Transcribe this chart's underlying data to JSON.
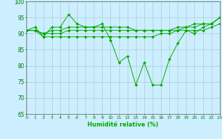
{
  "title": "",
  "xlabel": "Humidité relative (%)",
  "ylabel": "",
  "background_color": "#cceeff",
  "grid_color": "#aacccc",
  "line_color": "#00aa00",
  "ylim": [
    65,
    100
  ],
  "yticks": [
    65,
    70,
    75,
    80,
    85,
    90,
    95,
    100
  ],
  "xlim": [
    0,
    23
  ],
  "xticks": [
    0,
    1,
    2,
    3,
    4,
    5,
    6,
    7,
    8,
    9,
    10,
    11,
    12,
    13,
    14,
    15,
    16,
    17,
    18,
    19,
    20,
    21,
    22,
    23
  ],
  "series": [
    [
      91,
      92,
      89,
      92,
      92,
      96,
      93,
      92,
      92,
      93,
      88,
      81,
      83,
      74,
      81,
      74,
      74,
      82,
      87,
      91,
      90,
      92,
      93,
      95
    ],
    [
      91,
      91,
      89,
      89,
      89,
      89,
      89,
      89,
      89,
      89,
      89,
      89,
      89,
      89,
      89,
      89,
      90,
      90,
      91,
      91,
      91,
      91,
      92,
      93
    ],
    [
      91,
      91,
      90,
      90,
      90,
      91,
      91,
      91,
      91,
      91,
      91,
      91,
      91,
      91,
      91,
      91,
      91,
      91,
      91,
      92,
      92,
      93,
      93,
      95
    ],
    [
      91,
      91,
      90,
      91,
      91,
      92,
      92,
      92,
      92,
      92,
      92,
      92,
      92,
      91,
      91,
      91,
      91,
      91,
      92,
      92,
      93,
      93,
      93,
      95
    ]
  ]
}
